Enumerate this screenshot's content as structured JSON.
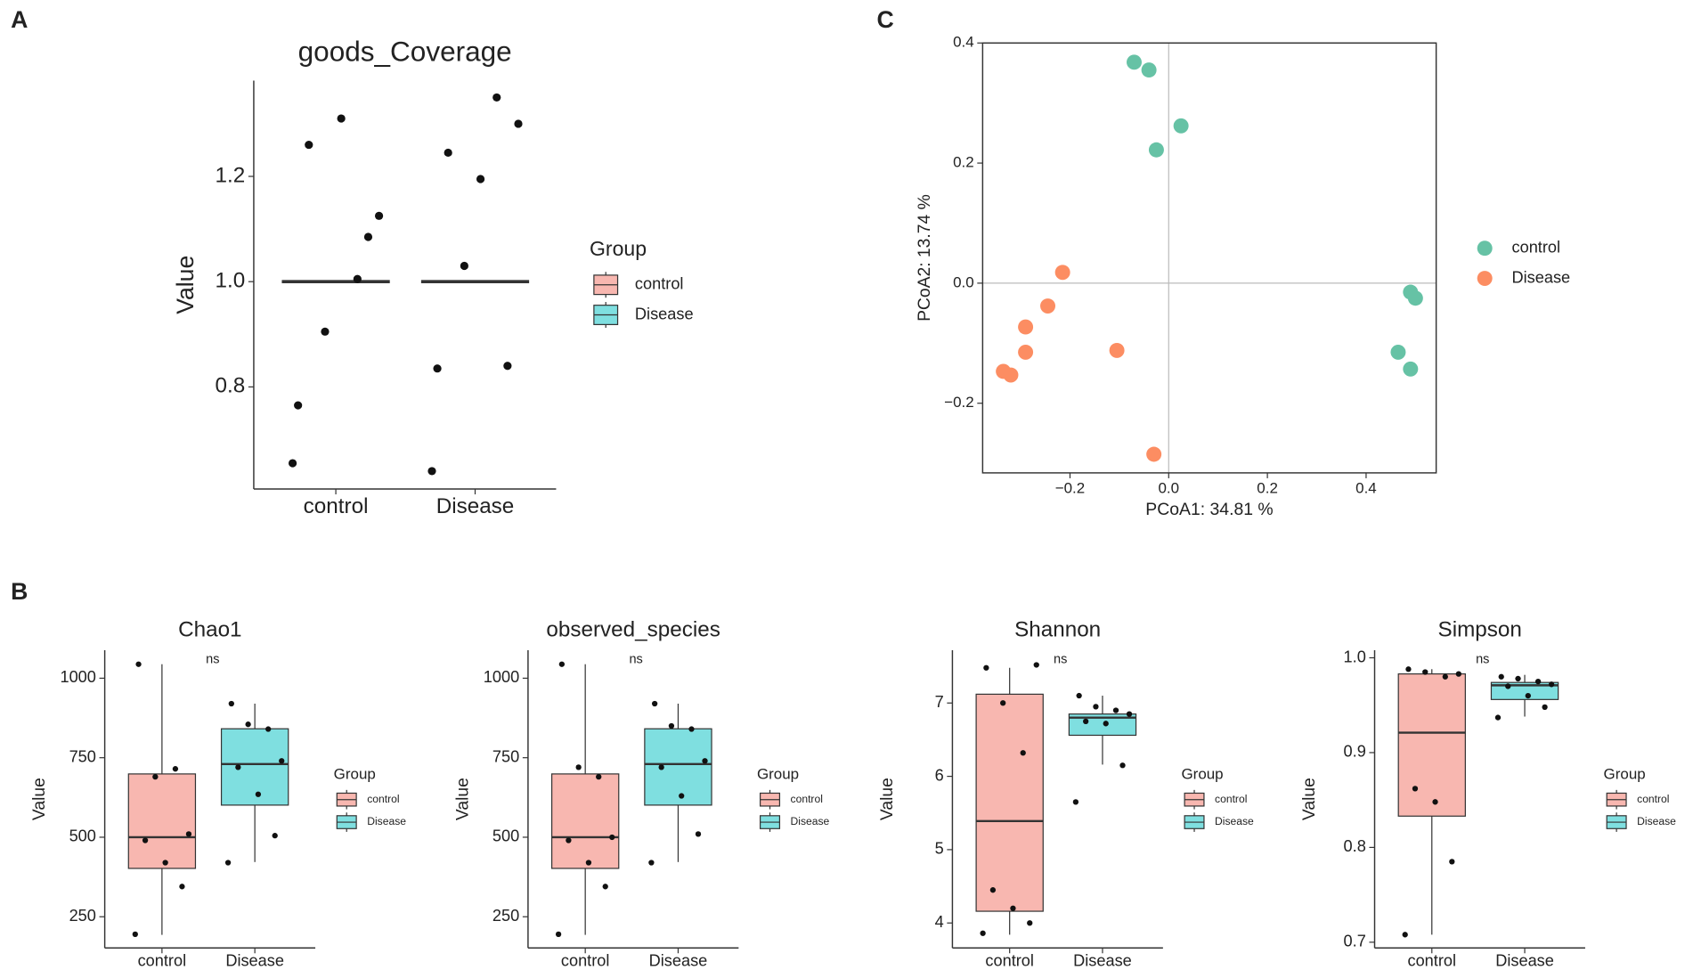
{
  "chart_data": [
    {
      "type": "strip",
      "panel": "A",
      "title": "goods_Coverage",
      "ylabel": "Value",
      "categories": [
        "control",
        "Disease"
      ],
      "legend_title": "Group",
      "series": [
        {
          "name": "control",
          "color": "#f8b7b0",
          "points": [
            0.765,
            0.905,
            1.005,
            1.125,
            1.26,
            1.31,
            1.085,
            0.655
          ],
          "median": 1.0
        },
        {
          "name": "Disease",
          "color": "#7fdfe0",
          "points": [
            0.835,
            1.03,
            1.35,
            1.3,
            1.245,
            1.195,
            0.84,
            0.64
          ],
          "median": 1.0
        }
      ],
      "ylim": [
        0.606,
        1.382
      ],
      "yticks": [
        0.8,
        {
          "value": 1.0,
          "label": "1.0"
        },
        1.2
      ]
    },
    {
      "type": "scatter",
      "panel": "C",
      "xlabel": "PCoA1:  34.81 %",
      "ylabel": "PCoA2:  13.74 %",
      "series": [
        {
          "name": "control",
          "color": "#66c2a5",
          "x": [
            -0.07,
            -0.04,
            -0.025,
            0.025,
            0.49,
            0.5,
            0.465,
            0.49
          ],
          "y": [
            0.368,
            0.355,
            0.222,
            0.262,
            -0.015,
            -0.025,
            -0.115,
            -0.143
          ]
        },
        {
          "name": "Disease",
          "color": "#fc8d62",
          "x": [
            -0.215,
            -0.245,
            -0.29,
            -0.29,
            -0.105,
            -0.335,
            -0.32,
            -0.03
          ],
          "y": [
            0.018,
            -0.038,
            -0.073,
            -0.115,
            -0.112,
            -0.147,
            -0.153,
            -0.285
          ]
        }
      ],
      "xlim": [
        -0.377,
        0.542
      ],
      "ylim": [
        -0.316,
        0.4
      ],
      "xticks": [
        {
          "value": -0.2,
          "label": "−0.2"
        },
        {
          "value": 0,
          "label": "0.0"
        },
        0.2,
        0.4
      ],
      "yticks": [
        {
          "value": -0.2,
          "label": "−0.2"
        },
        {
          "value": 0,
          "label": "0.0"
        },
        0.2,
        0.4
      ]
    },
    {
      "type": "box",
      "panel": "B",
      "title": "Chao1",
      "ylabel": "Value",
      "annotation": "ns",
      "categories": [
        "control",
        "Disease"
      ],
      "legend_title": "Group",
      "series": [
        {
          "name": "control",
          "color": "#f8b7b0",
          "box": {
            "whislo": 193,
            "q1": 402,
            "median": 500,
            "q3": 699,
            "whishi": 1044
          },
          "points": [
            1044,
            690,
            715,
            510,
            490,
            420,
            345,
            195
          ]
        },
        {
          "name": "Disease",
          "color": "#7fdfe0",
          "box": {
            "whislo": 422,
            "q1": 601,
            "median": 730,
            "q3": 841,
            "whishi": 920
          },
          "points": [
            920,
            855,
            840,
            740,
            720,
            635,
            505,
            420
          ]
        }
      ],
      "ylim": [
        152,
        1088
      ],
      "yticks": [
        250,
        500,
        750,
        1000
      ]
    },
    {
      "type": "box",
      "panel": null,
      "title": "observed_species",
      "ylabel": "Value",
      "annotation": "ns",
      "categories": [
        "control",
        "Disease"
      ],
      "legend_title": "Group",
      "series": [
        {
          "name": "control",
          "color": "#f8b7b0",
          "box": {
            "whislo": 193,
            "q1": 402,
            "median": 500,
            "q3": 699,
            "whishi": 1044
          },
          "points": [
            1044,
            720,
            690,
            500,
            490,
            420,
            345,
            195
          ]
        },
        {
          "name": "Disease",
          "color": "#7fdfe0",
          "box": {
            "whislo": 422,
            "q1": 601,
            "median": 730,
            "q3": 841,
            "whishi": 920
          },
          "points": [
            920,
            850,
            840,
            740,
            720,
            630,
            510,
            420
          ]
        }
      ],
      "ylim": [
        152,
        1088
      ],
      "yticks": [
        250,
        500,
        750,
        1000
      ]
    },
    {
      "type": "box",
      "panel": null,
      "title": "Shannon",
      "ylabel": "Value",
      "annotation": "ns",
      "categories": [
        "control",
        "Disease"
      ],
      "legend_title": "Group",
      "series": [
        {
          "name": "control",
          "color": "#f8b7b0",
          "box": {
            "whislo": 3.84,
            "q1": 4.16,
            "median": 5.39,
            "q3": 7.12,
            "whishi": 7.48
          },
          "points": [
            7.48,
            7.0,
            6.32,
            7.52,
            4.45,
            4.2,
            4.0,
            3.86
          ]
        },
        {
          "name": "Disease",
          "color": "#7fdfe0",
          "box": {
            "whislo": 6.16,
            "q1": 6.56,
            "median": 6.8,
            "q3": 6.85,
            "whishi": 7.1
          },
          "points": [
            7.1,
            6.95,
            6.9,
            6.85,
            6.75,
            6.72,
            6.15,
            5.65
          ]
        }
      ],
      "ylim": [
        3.66,
        7.72
      ],
      "yticks": [
        4,
        5,
        6,
        7
      ]
    },
    {
      "type": "box",
      "panel": null,
      "title": "Simpson",
      "ylabel": "Value",
      "annotation": "ns",
      "categories": [
        "control",
        "Disease"
      ],
      "legend_title": "Group",
      "series": [
        {
          "name": "control",
          "color": "#f8b7b0",
          "box": {
            "whislo": 0.708,
            "q1": 0.833,
            "median": 0.921,
            "q3": 0.983,
            "whishi": 0.988
          },
          "points": [
            0.988,
            0.985,
            0.98,
            0.983,
            0.862,
            0.848,
            0.785,
            0.708
          ]
        },
        {
          "name": "Disease",
          "color": "#7fdfe0",
          "box": {
            "whislo": 0.938,
            "q1": 0.956,
            "median": 0.971,
            "q3": 0.974,
            "whishi": 0.982
          },
          "points": [
            0.98,
            0.978,
            0.975,
            0.972,
            0.97,
            0.96,
            0.948,
            0.937
          ]
        }
      ],
      "ylim": [
        0.694,
        1.008
      ],
      "yticks": [
        0.7,
        0.8,
        0.9,
        {
          "value": 1.0,
          "label": "1.0"
        }
      ]
    }
  ]
}
